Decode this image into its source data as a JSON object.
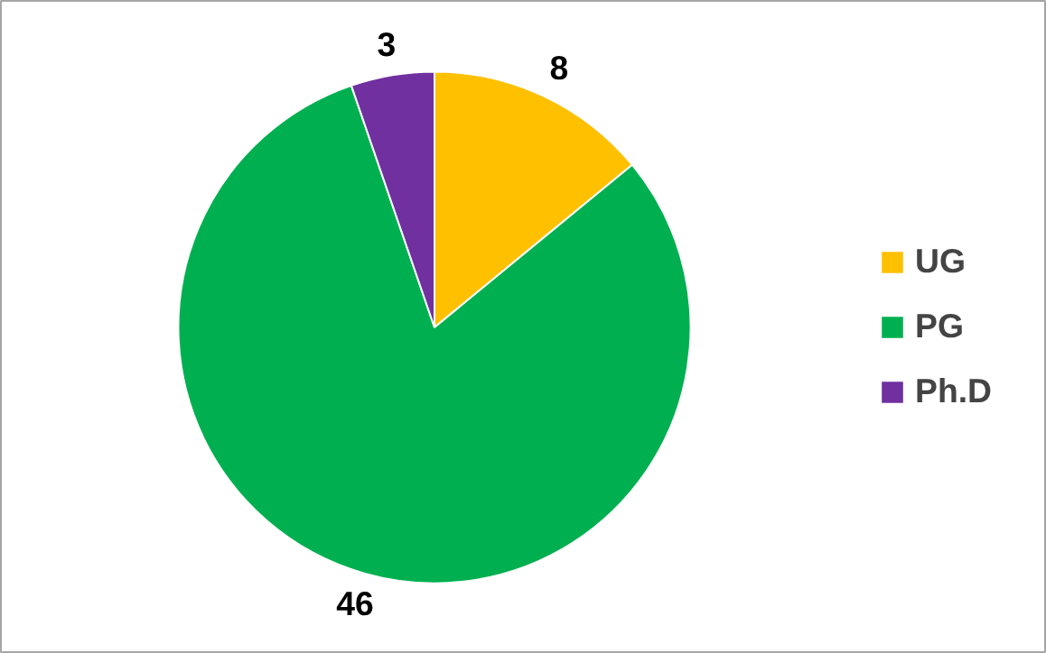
{
  "chart_data": {
    "type": "pie",
    "categories": [
      "UG",
      "PG",
      "Ph.D"
    ],
    "values": [
      8,
      46,
      3
    ],
    "colors": [
      "#ffc000",
      "#00b050",
      "#7030a0"
    ],
    "data_labels": true,
    "legend": "right"
  }
}
